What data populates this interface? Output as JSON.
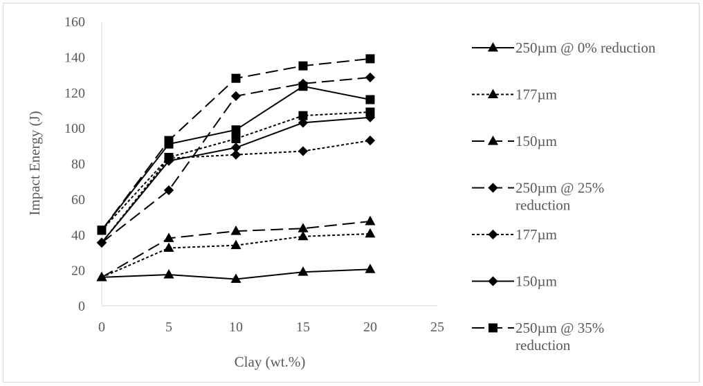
{
  "chart_data": {
    "type": "line",
    "title": "",
    "xlabel": "Clay (wt.%)",
    "ylabel": "Impact Energy (J)",
    "xlim": [
      0,
      25
    ],
    "ylim": [
      0,
      160
    ],
    "x_ticks": [
      "0",
      "5",
      "10",
      "15",
      "20",
      "25"
    ],
    "y_ticks": [
      "0",
      "20",
      "40",
      "60",
      "80",
      "100",
      "120",
      "140",
      "160"
    ],
    "x": [
      0,
      5,
      10,
      15,
      20
    ],
    "grid": false,
    "legend_position": "right",
    "series": [
      {
        "name": "250µm @ 0% reduction",
        "marker": "triangle",
        "dash": "solid",
        "values": [
          16,
          17.5,
          15,
          19,
          20.5
        ]
      },
      {
        "name": "177µm",
        "marker": "triangle",
        "dash": "dotted",
        "values": [
          16,
          32.5,
          34,
          39,
          40.5
        ]
      },
      {
        "name": "150µm",
        "marker": "triangle",
        "dash": "long-dash",
        "values": [
          16,
          38,
          42,
          43.5,
          47.5
        ]
      },
      {
        "name": "250µm @ 25% reduction",
        "marker": "diamond",
        "dash": "long-dash",
        "values": [
          35.5,
          65,
          118,
          125,
          128.5
        ]
      },
      {
        "name": "177µm",
        "marker": "diamond",
        "dash": "dotted",
        "values": [
          35.5,
          83,
          85,
          87,
          93
        ]
      },
      {
        "name": "150µm",
        "marker": "diamond",
        "dash": "solid",
        "values": [
          35.5,
          81.5,
          89,
          103,
          106
        ]
      },
      {
        "name": "250µm @ 35% reduction",
        "marker": "square",
        "dash": "long-dash",
        "values": [
          42.5,
          93,
          128,
          135,
          139
        ]
      },
      {
        "name": "",
        "marker": "square",
        "dash": "dotted",
        "values": [
          42.5,
          83.5,
          94,
          107,
          109
        ]
      },
      {
        "name": "",
        "marker": "square",
        "dash": "solid",
        "values": [
          42.5,
          91,
          99,
          123.5,
          116
        ]
      }
    ],
    "legend": [
      {
        "series_index": 0,
        "lines": [
          "250µm @ 0% reduction"
        ]
      },
      {
        "series_index": 1,
        "lines": [
          "177µm"
        ]
      },
      {
        "series_index": 2,
        "lines": [
          "150µm"
        ]
      },
      {
        "series_index": 3,
        "lines": [
          "250µm @ 25%",
          "reduction"
        ]
      },
      {
        "series_index": 4,
        "lines": [
          "177µm"
        ]
      },
      {
        "series_index": 5,
        "lines": [
          "150µm"
        ]
      },
      {
        "series_index": 6,
        "lines": [
          "250µm @ 35%",
          "reduction"
        ]
      }
    ]
  },
  "colors": {
    "series": "#000000",
    "axis": "#d9d9d9",
    "text": "#595959",
    "border": "#d9d9d9"
  }
}
